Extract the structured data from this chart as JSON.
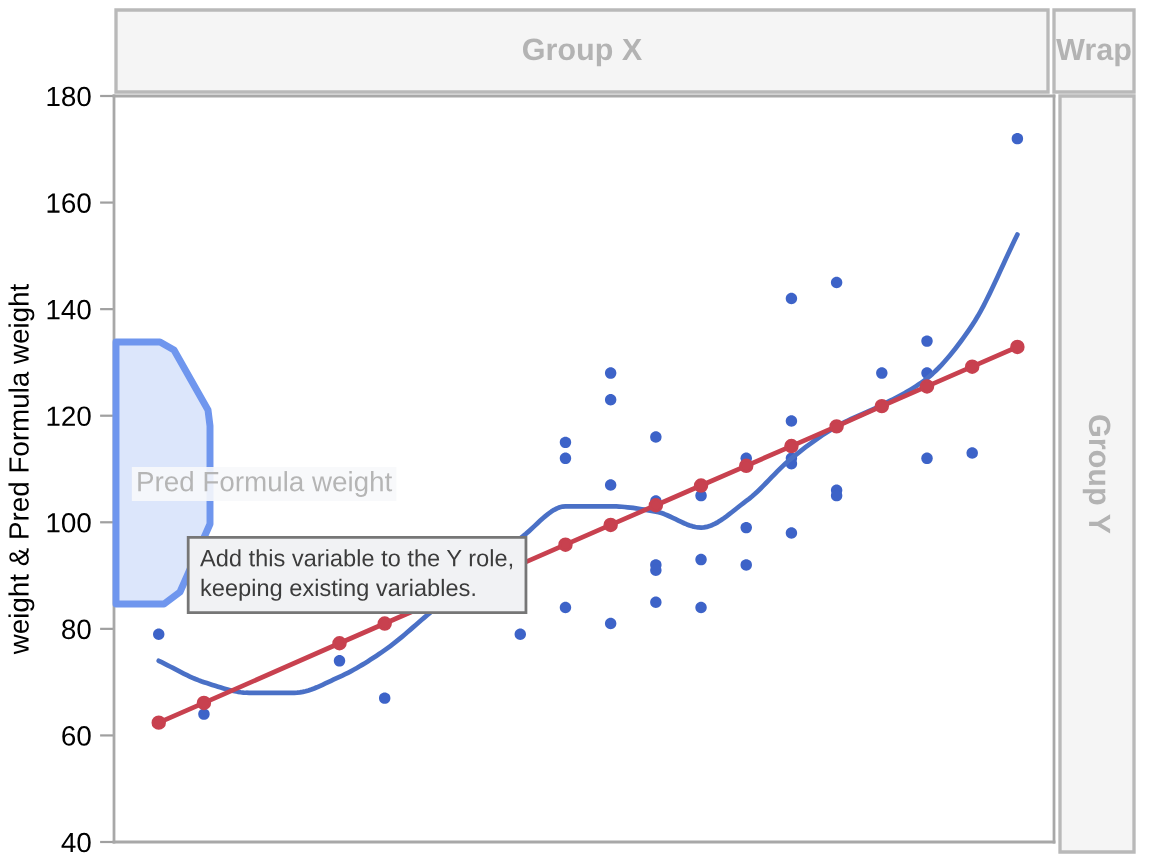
{
  "chart_data": {
    "type": "scatter",
    "ylabel": "weight & Pred Formula weight",
    "annotations": [
      "Group X",
      "Wrap",
      "Group Y",
      "Pred Formula weight",
      "Add this variable to the Y role,\nkeeping existing variables."
    ],
    "categories": [
      null,
      null,
      null,
      null,
      null,
      null,
      null,
      null,
      null,
      null,
      null,
      null,
      null,
      null,
      null,
      null,
      null,
      null,
      null,
      null
    ],
    "ylim": [
      40,
      180
    ],
    "yticks": [
      40,
      60,
      80,
      100,
      120,
      140,
      160,
      180
    ],
    "tick_labels": "y",
    "marker": "circle",
    "series": [
      {
        "color": "#3d63c8",
        "values": [
          79,
          64,
          null,
          null,
          74,
          67,
          null,
          null,
          79,
          115,
          128,
          116,
          105,
          112,
          142,
          145,
          128,
          134,
          113,
          172
        ]
      },
      {
        "color": "#3d63c8",
        "values": [
          null,
          null,
          null,
          null,
          null,
          null,
          null,
          null,
          null,
          112,
          123,
          104,
          93,
          99,
          119,
          106,
          null,
          128,
          null,
          null
        ]
      },
      {
        "color": "#3d63c8",
        "values": [
          null,
          null,
          null,
          null,
          null,
          null,
          null,
          null,
          null,
          84,
          107,
          92,
          84,
          92,
          112,
          105,
          null,
          112,
          null,
          null
        ]
      },
      {
        "color": "#3d63c8",
        "values": [
          null,
          null,
          null,
          null,
          null,
          null,
          null,
          null,
          null,
          null,
          81,
          91,
          null,
          null,
          111,
          null,
          null,
          null,
          null,
          null
        ]
      },
      {
        "color": "#3d63c8",
        "values": [
          null,
          null,
          null,
          null,
          null,
          null,
          null,
          null,
          null,
          null,
          null,
          85,
          null,
          null,
          98,
          null,
          null,
          null,
          null,
          null
        ]
      },
      {
        "type": "line",
        "color": "#4a70c6",
        "marker": "none",
        "values": [
          74,
          70,
          68,
          68,
          71,
          76,
          83,
          null,
          97,
          103,
          103,
          102,
          99,
          104,
          112,
          118,
          122,
          127,
          137,
          154
        ]
      },
      {
        "type": "line",
        "color": "#c8414f",
        "values": [
          62.4,
          66.1,
          null,
          null,
          77.3,
          81.0,
          null,
          null,
          null,
          95.8,
          99.5,
          103.2,
          106.9,
          110.6,
          114.3,
          118.0,
          121.8,
          125.5,
          129.2,
          132.9
        ]
      }
    ]
  }
}
